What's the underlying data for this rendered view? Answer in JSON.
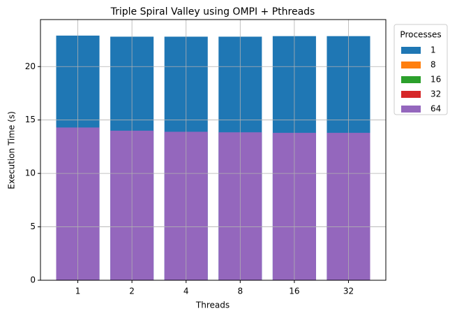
{
  "chart_data": {
    "type": "bar",
    "title": "Triple Spiral Valley using OMPI + Pthreads",
    "x_label": "Threads",
    "y_label": "Execution Time (s)",
    "categories": [
      "1",
      "2",
      "4",
      "8",
      "16",
      "32"
    ],
    "series": [
      {
        "name": "1",
        "color": "#1f77b4",
        "values": [
          22.9,
          22.8,
          22.8,
          22.8,
          22.85,
          22.85
        ]
      },
      {
        "name": "8",
        "color": "#ff7f0e",
        "values": [
          null,
          null,
          null,
          null,
          null,
          null
        ]
      },
      {
        "name": "16",
        "color": "#2ca02c",
        "values": [
          null,
          null,
          null,
          null,
          null,
          null
        ]
      },
      {
        "name": "32",
        "color": "#d62728",
        "values": [
          null,
          null,
          null,
          null,
          null,
          null
        ]
      },
      {
        "name": "64",
        "color": "#9467bd",
        "values": [
          14.3,
          14.0,
          13.9,
          13.85,
          13.8,
          13.8
        ]
      }
    ],
    "ylim": [
      0,
      24.4
    ],
    "yticks": [
      0,
      5,
      10,
      15,
      20
    ],
    "grid": true,
    "overlap": true,
    "legend_title": "Processes",
    "legend": "right"
  }
}
